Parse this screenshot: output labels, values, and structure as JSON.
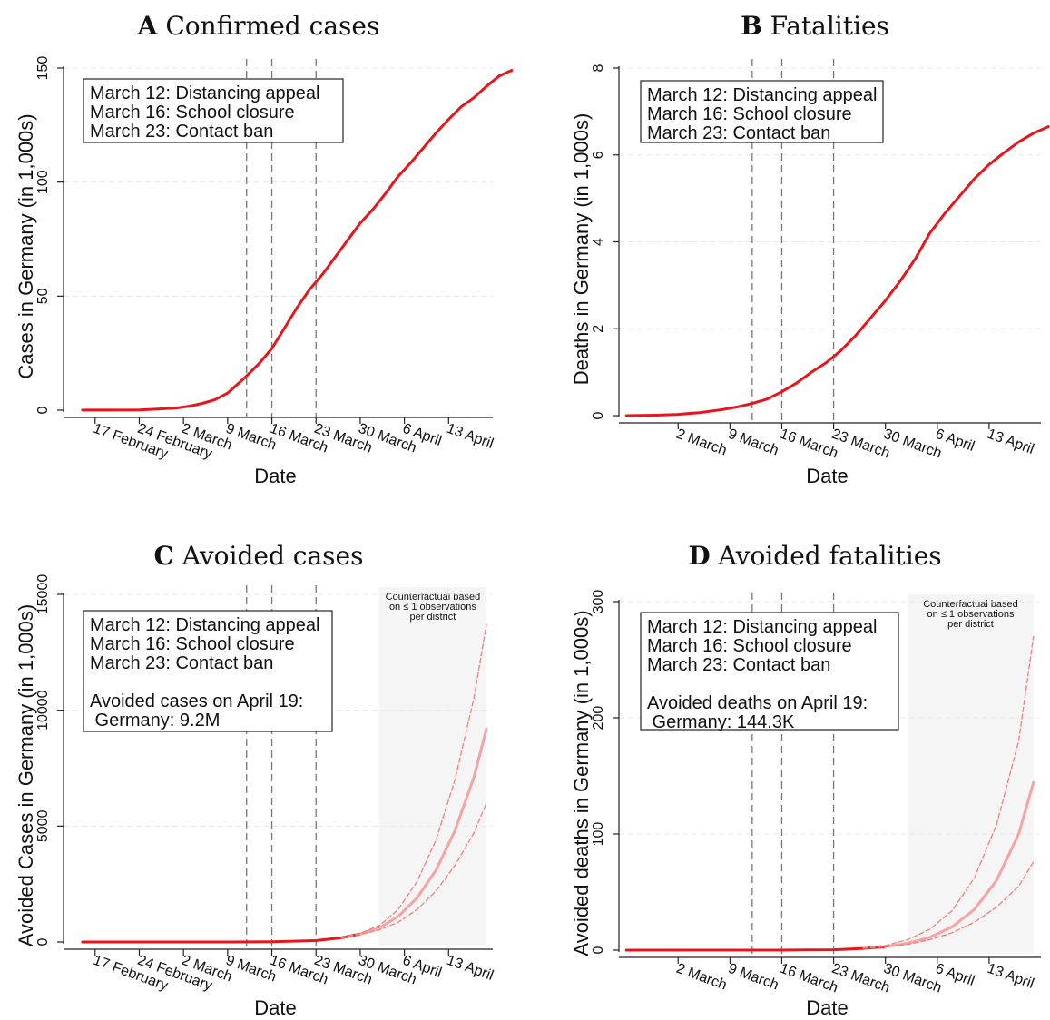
{
  "chart_data": [
    {
      "id": "A",
      "type": "line",
      "title_letter": "A",
      "title": "Confirmed cases",
      "xlabel": "Date",
      "ylabel": "Cases in Germany (in 1,000s)",
      "xlim": [
        "2020-02-12",
        "2020-04-20"
      ],
      "ylim": [
        0,
        150
      ],
      "yticks": [
        0,
        50,
        100,
        150
      ],
      "xticks": [
        {
          "date": "2020-02-17",
          "label": "17 February"
        },
        {
          "date": "2020-02-24",
          "label": "24 February"
        },
        {
          "date": "2020-03-02",
          "label": "2 March"
        },
        {
          "date": "2020-03-09",
          "label": "9 March"
        },
        {
          "date": "2020-03-16",
          "label": "16 March"
        },
        {
          "date": "2020-03-23",
          "label": "23 March"
        },
        {
          "date": "2020-03-30",
          "label": "30 March"
        },
        {
          "date": "2020-04-06",
          "label": "6 April"
        },
        {
          "date": "2020-04-13",
          "label": "13 April"
        }
      ],
      "vlines": [
        "2020-03-12",
        "2020-03-16",
        "2020-03-23"
      ],
      "grid": "y-dashed",
      "legend_box": {
        "position": "top-left",
        "lines": [
          "March 12: Distancing appeal",
          "March 16: School closure",
          "March 23: Contact ban"
        ]
      },
      "series": [
        {
          "color": "#e8151b",
          "style": "solid",
          "points": [
            [
              "2020-02-15",
              0.02
            ],
            [
              "2020-02-20",
              0.02
            ],
            [
              "2020-02-24",
              0.1
            ],
            [
              "2020-02-27",
              0.5
            ],
            [
              "2020-03-01",
              1.0
            ],
            [
              "2020-03-03",
              1.8
            ],
            [
              "2020-03-05",
              3.0
            ],
            [
              "2020-03-07",
              4.6
            ],
            [
              "2020-03-09",
              7.5
            ],
            [
              "2020-03-11",
              12.5
            ],
            [
              "2020-03-12",
              15.0
            ],
            [
              "2020-03-14",
              20.5
            ],
            [
              "2020-03-16",
              27.0
            ],
            [
              "2020-03-18",
              36.0
            ],
            [
              "2020-03-20",
              45.0
            ],
            [
              "2020-03-22",
              53.0
            ],
            [
              "2020-03-24",
              59.5
            ],
            [
              "2020-03-26",
              67.0
            ],
            [
              "2020-03-28",
              74.5
            ],
            [
              "2020-03-30",
              82.0
            ],
            [
              "2020-04-01",
              88.0
            ],
            [
              "2020-04-03",
              95.0
            ],
            [
              "2020-04-05",
              102.5
            ],
            [
              "2020-04-07",
              108.5
            ],
            [
              "2020-04-09",
              115.0
            ],
            [
              "2020-04-11",
              121.5
            ],
            [
              "2020-04-13",
              127.5
            ],
            [
              "2020-04-15",
              133.0
            ],
            [
              "2020-04-17",
              137.0
            ],
            [
              "2020-04-19",
              142.0
            ],
            [
              "2020-04-21",
              146.5
            ],
            [
              "2020-04-23",
              149.0
            ]
          ]
        }
      ]
    },
    {
      "id": "B",
      "type": "line",
      "title_letter": "B",
      "title": "Fatalities",
      "xlabel": "Date",
      "ylabel": "Deaths in Germany (in 1,000s)",
      "xlim": [
        "2020-02-23",
        "2020-04-20"
      ],
      "ylim": [
        0,
        8
      ],
      "yticks": [
        0,
        2,
        4,
        6,
        8
      ],
      "xticks": [
        {
          "date": "2020-03-02",
          "label": "2 March"
        },
        {
          "date": "2020-03-09",
          "label": "9 March"
        },
        {
          "date": "2020-03-16",
          "label": "16 March"
        },
        {
          "date": "2020-03-23",
          "label": "23 March"
        },
        {
          "date": "2020-03-30",
          "label": "30 March"
        },
        {
          "date": "2020-04-06",
          "label": "6 April"
        },
        {
          "date": "2020-04-13",
          "label": "13 April"
        }
      ],
      "vlines": [
        "2020-03-12",
        "2020-03-16",
        "2020-03-23"
      ],
      "grid": "y-dashed",
      "legend_box": {
        "position": "top-left",
        "lines": [
          "March 12: Distancing appeal",
          "March 16: School closure",
          "March 23: Contact ban"
        ]
      },
      "series": [
        {
          "color": "#e8151b",
          "style": "solid",
          "points": [
            [
              "2020-02-24",
              0.0
            ],
            [
              "2020-02-28",
              0.01
            ],
            [
              "2020-03-02",
              0.03
            ],
            [
              "2020-03-05",
              0.07
            ],
            [
              "2020-03-08",
              0.14
            ],
            [
              "2020-03-10",
              0.2
            ],
            [
              "2020-03-12",
              0.28
            ],
            [
              "2020-03-14",
              0.38
            ],
            [
              "2020-03-16",
              0.55
            ],
            [
              "2020-03-18",
              0.75
            ],
            [
              "2020-03-20",
              1.0
            ],
            [
              "2020-03-22",
              1.22
            ],
            [
              "2020-03-24",
              1.5
            ],
            [
              "2020-03-26",
              1.85
            ],
            [
              "2020-03-28",
              2.25
            ],
            [
              "2020-03-30",
              2.65
            ],
            [
              "2020-04-01",
              3.1
            ],
            [
              "2020-04-03",
              3.6
            ],
            [
              "2020-04-05",
              4.2
            ],
            [
              "2020-04-07",
              4.65
            ],
            [
              "2020-04-09",
              5.05
            ],
            [
              "2020-04-11",
              5.45
            ],
            [
              "2020-04-13",
              5.78
            ],
            [
              "2020-04-15",
              6.05
            ],
            [
              "2020-04-17",
              6.3
            ],
            [
              "2020-04-19",
              6.5
            ],
            [
              "2020-04-21",
              6.65
            ]
          ]
        }
      ]
    },
    {
      "id": "C",
      "type": "line",
      "title_letter": "C",
      "title": "Avoided cases",
      "xlabel": "Date",
      "ylabel": "Avoided Cases in Germany (in 1,000s)",
      "xlim": [
        "2020-02-12",
        "2020-04-20"
      ],
      "ylim": [
        0,
        15000
      ],
      "yticks": [
        0,
        5000,
        10000,
        15000
      ],
      "xticks": [
        {
          "date": "2020-02-17",
          "label": "17 February"
        },
        {
          "date": "2020-02-24",
          "label": "24 February"
        },
        {
          "date": "2020-03-02",
          "label": "2 March"
        },
        {
          "date": "2020-03-09",
          "label": "9 March"
        },
        {
          "date": "2020-03-16",
          "label": "16 March"
        },
        {
          "date": "2020-03-23",
          "label": "23 March"
        },
        {
          "date": "2020-03-30",
          "label": "30 March"
        },
        {
          "date": "2020-04-06",
          "label": "6 April"
        },
        {
          "date": "2020-04-13",
          "label": "13 April"
        }
      ],
      "vlines": [
        "2020-03-12",
        "2020-03-16",
        "2020-03-23"
      ],
      "grid": "y-dashed",
      "shaded_region": {
        "from": "2020-04-02",
        "to": "2020-04-19",
        "label": [
          "Counterfactual based",
          "on ≤ 1 observations",
          "per district"
        ]
      },
      "legend_box": {
        "position": "top-left",
        "lines": [
          "March 12: Distancing appeal",
          "March 16: School closure",
          "March 23: Contact ban",
          "",
          "Avoided cases on April 19:",
          " Germany: 9.2M"
        ]
      },
      "series": [
        {
          "color": "#e8151b",
          "style": "solid",
          "points": [
            [
              "2020-02-15",
              0
            ],
            [
              "2020-03-09",
              0
            ],
            [
              "2020-03-16",
              10
            ],
            [
              "2020-03-23",
              60
            ],
            [
              "2020-03-27",
              180
            ],
            [
              "2020-03-30",
              350
            ]
          ]
        },
        {
          "color": "#f5a3a3",
          "style": "solid",
          "points": [
            [
              "2020-03-30",
              350
            ],
            [
              "2020-04-02",
              600
            ],
            [
              "2020-04-05",
              1100
            ],
            [
              "2020-04-08",
              1900
            ],
            [
              "2020-04-11",
              3100
            ],
            [
              "2020-04-14",
              4800
            ],
            [
              "2020-04-17",
              7100
            ],
            [
              "2020-04-19",
              9200
            ]
          ]
        },
        {
          "color": "#f07f7f",
          "style": "dashed",
          "points": [
            [
              "2020-03-27",
              200
            ],
            [
              "2020-03-30",
              380
            ],
            [
              "2020-04-02",
              700
            ],
            [
              "2020-04-05",
              1400
            ],
            [
              "2020-04-08",
              2600
            ],
            [
              "2020-04-11",
              4400
            ],
            [
              "2020-04-14",
              7000
            ],
            [
              "2020-04-17",
              10500
            ],
            [
              "2020-04-19",
              13700
            ]
          ]
        },
        {
          "color": "#f07f7f",
          "style": "dashed",
          "points": [
            [
              "2020-03-27",
              170
            ],
            [
              "2020-03-30",
              320
            ],
            [
              "2020-04-02",
              520
            ],
            [
              "2020-04-05",
              850
            ],
            [
              "2020-04-08",
              1400
            ],
            [
              "2020-04-11",
              2200
            ],
            [
              "2020-04-14",
              3300
            ],
            [
              "2020-04-17",
              4700
            ],
            [
              "2020-04-19",
              6000
            ]
          ]
        }
      ]
    },
    {
      "id": "D",
      "type": "line",
      "title_letter": "D",
      "title": "Avoided fatalities",
      "xlabel": "Date",
      "ylabel": "Avoided deaths in Germany (in 1,000s)",
      "xlim": [
        "2020-02-23",
        "2020-04-20"
      ],
      "ylim": [
        0,
        300
      ],
      "yticks": [
        0,
        100,
        200,
        300
      ],
      "xticks": [
        {
          "date": "2020-03-02",
          "label": "2 March"
        },
        {
          "date": "2020-03-09",
          "label": "9 March"
        },
        {
          "date": "2020-03-16",
          "label": "16 March"
        },
        {
          "date": "2020-03-23",
          "label": "23 March"
        },
        {
          "date": "2020-03-30",
          "label": "30 March"
        },
        {
          "date": "2020-04-06",
          "label": "6 April"
        },
        {
          "date": "2020-04-13",
          "label": "13 April"
        }
      ],
      "vlines": [
        "2020-03-12",
        "2020-03-16",
        "2020-03-23"
      ],
      "grid": "y-dashed",
      "shaded_region": {
        "from": "2020-04-02",
        "to": "2020-04-19",
        "label": [
          "Counterfactual based",
          "on ≤ 1 observations",
          "per district"
        ]
      },
      "legend_box": {
        "position": "top-left",
        "lines": [
          "March 12: Distancing appeal",
          "March 16: School closure",
          "March 23: Contact ban",
          "",
          "Avoided deaths on April 19:",
          " Germany: 144.3K"
        ]
      },
      "series": [
        {
          "color": "#e8151b",
          "style": "solid",
          "points": [
            [
              "2020-02-24",
              0
            ],
            [
              "2020-03-16",
              0
            ],
            [
              "2020-03-23",
              0.3
            ],
            [
              "2020-03-27",
              1.5
            ],
            [
              "2020-03-30",
              3
            ]
          ]
        },
        {
          "color": "#f5a3a3",
          "style": "solid",
          "points": [
            [
              "2020-03-30",
              3
            ],
            [
              "2020-04-02",
              6
            ],
            [
              "2020-04-05",
              11
            ],
            [
              "2020-04-08",
              20
            ],
            [
              "2020-04-11",
              35
            ],
            [
              "2020-04-14",
              60
            ],
            [
              "2020-04-17",
              100
            ],
            [
              "2020-04-19",
              144.3
            ]
          ]
        },
        {
          "color": "#f07f7f",
          "style": "dashed",
          "points": [
            [
              "2020-03-27",
              2
            ],
            [
              "2020-03-30",
              4
            ],
            [
              "2020-04-02",
              9
            ],
            [
              "2020-04-05",
              18
            ],
            [
              "2020-04-08",
              34
            ],
            [
              "2020-04-11",
              62
            ],
            [
              "2020-04-14",
              108
            ],
            [
              "2020-04-17",
              180
            ],
            [
              "2020-04-19",
              270
            ]
          ]
        },
        {
          "color": "#f07f7f",
          "style": "dashed",
          "points": [
            [
              "2020-03-27",
              1.5
            ],
            [
              "2020-03-30",
              2.8
            ],
            [
              "2020-04-02",
              5
            ],
            [
              "2020-04-05",
              9
            ],
            [
              "2020-04-08",
              15
            ],
            [
              "2020-04-11",
              24
            ],
            [
              "2020-04-14",
              37
            ],
            [
              "2020-04-17",
              55
            ],
            [
              "2020-04-19",
              76
            ]
          ]
        }
      ]
    }
  ]
}
